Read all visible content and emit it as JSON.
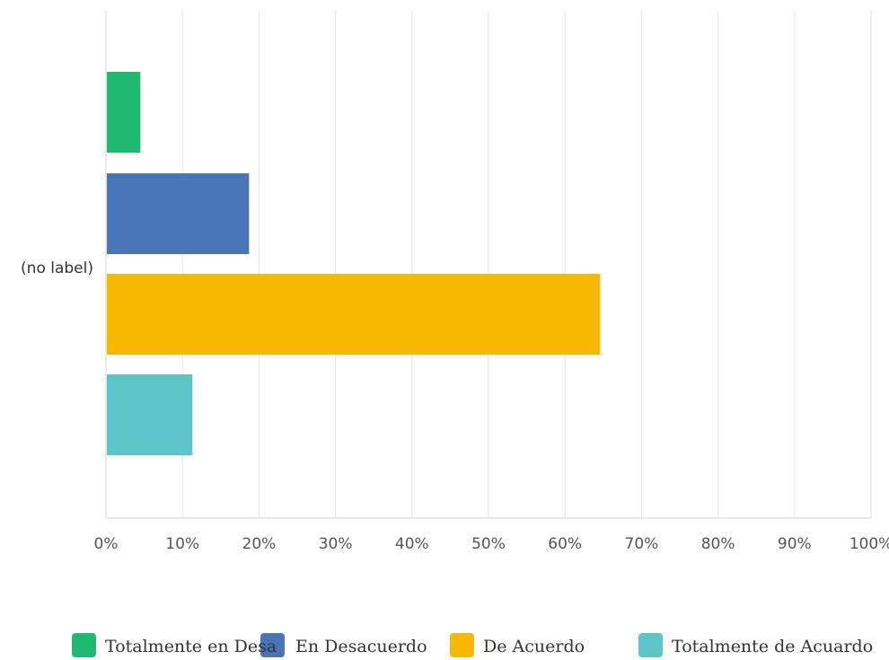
{
  "chart_data": {
    "type": "bar",
    "orientation": "horizontal",
    "categories": [
      "(no label)"
    ],
    "series": [
      {
        "name": "Totalmente en Desa",
        "values": [
          4.5
        ],
        "color": "#1fb96f"
      },
      {
        "name": "En Desacuerdo",
        "values": [
          18.7
        ],
        "color": "#4a74b8"
      },
      {
        "name": "De Acuerdo",
        "values": [
          64.6
        ],
        "color": "#f7b800"
      },
      {
        "name": "Totalmente de Acuardo",
        "values": [
          11.3
        ],
        "color": "#5cc5c8"
      }
    ],
    "xlim": [
      0,
      100
    ],
    "x_ticks": [
      "0%",
      "10%",
      "20%",
      "30%",
      "40%",
      "50%",
      "60%",
      "70%",
      "80%",
      "90%",
      "100%"
    ],
    "grid": true,
    "legend_position": "bottom",
    "title": "",
    "xlabel": "",
    "ylabel": ""
  }
}
